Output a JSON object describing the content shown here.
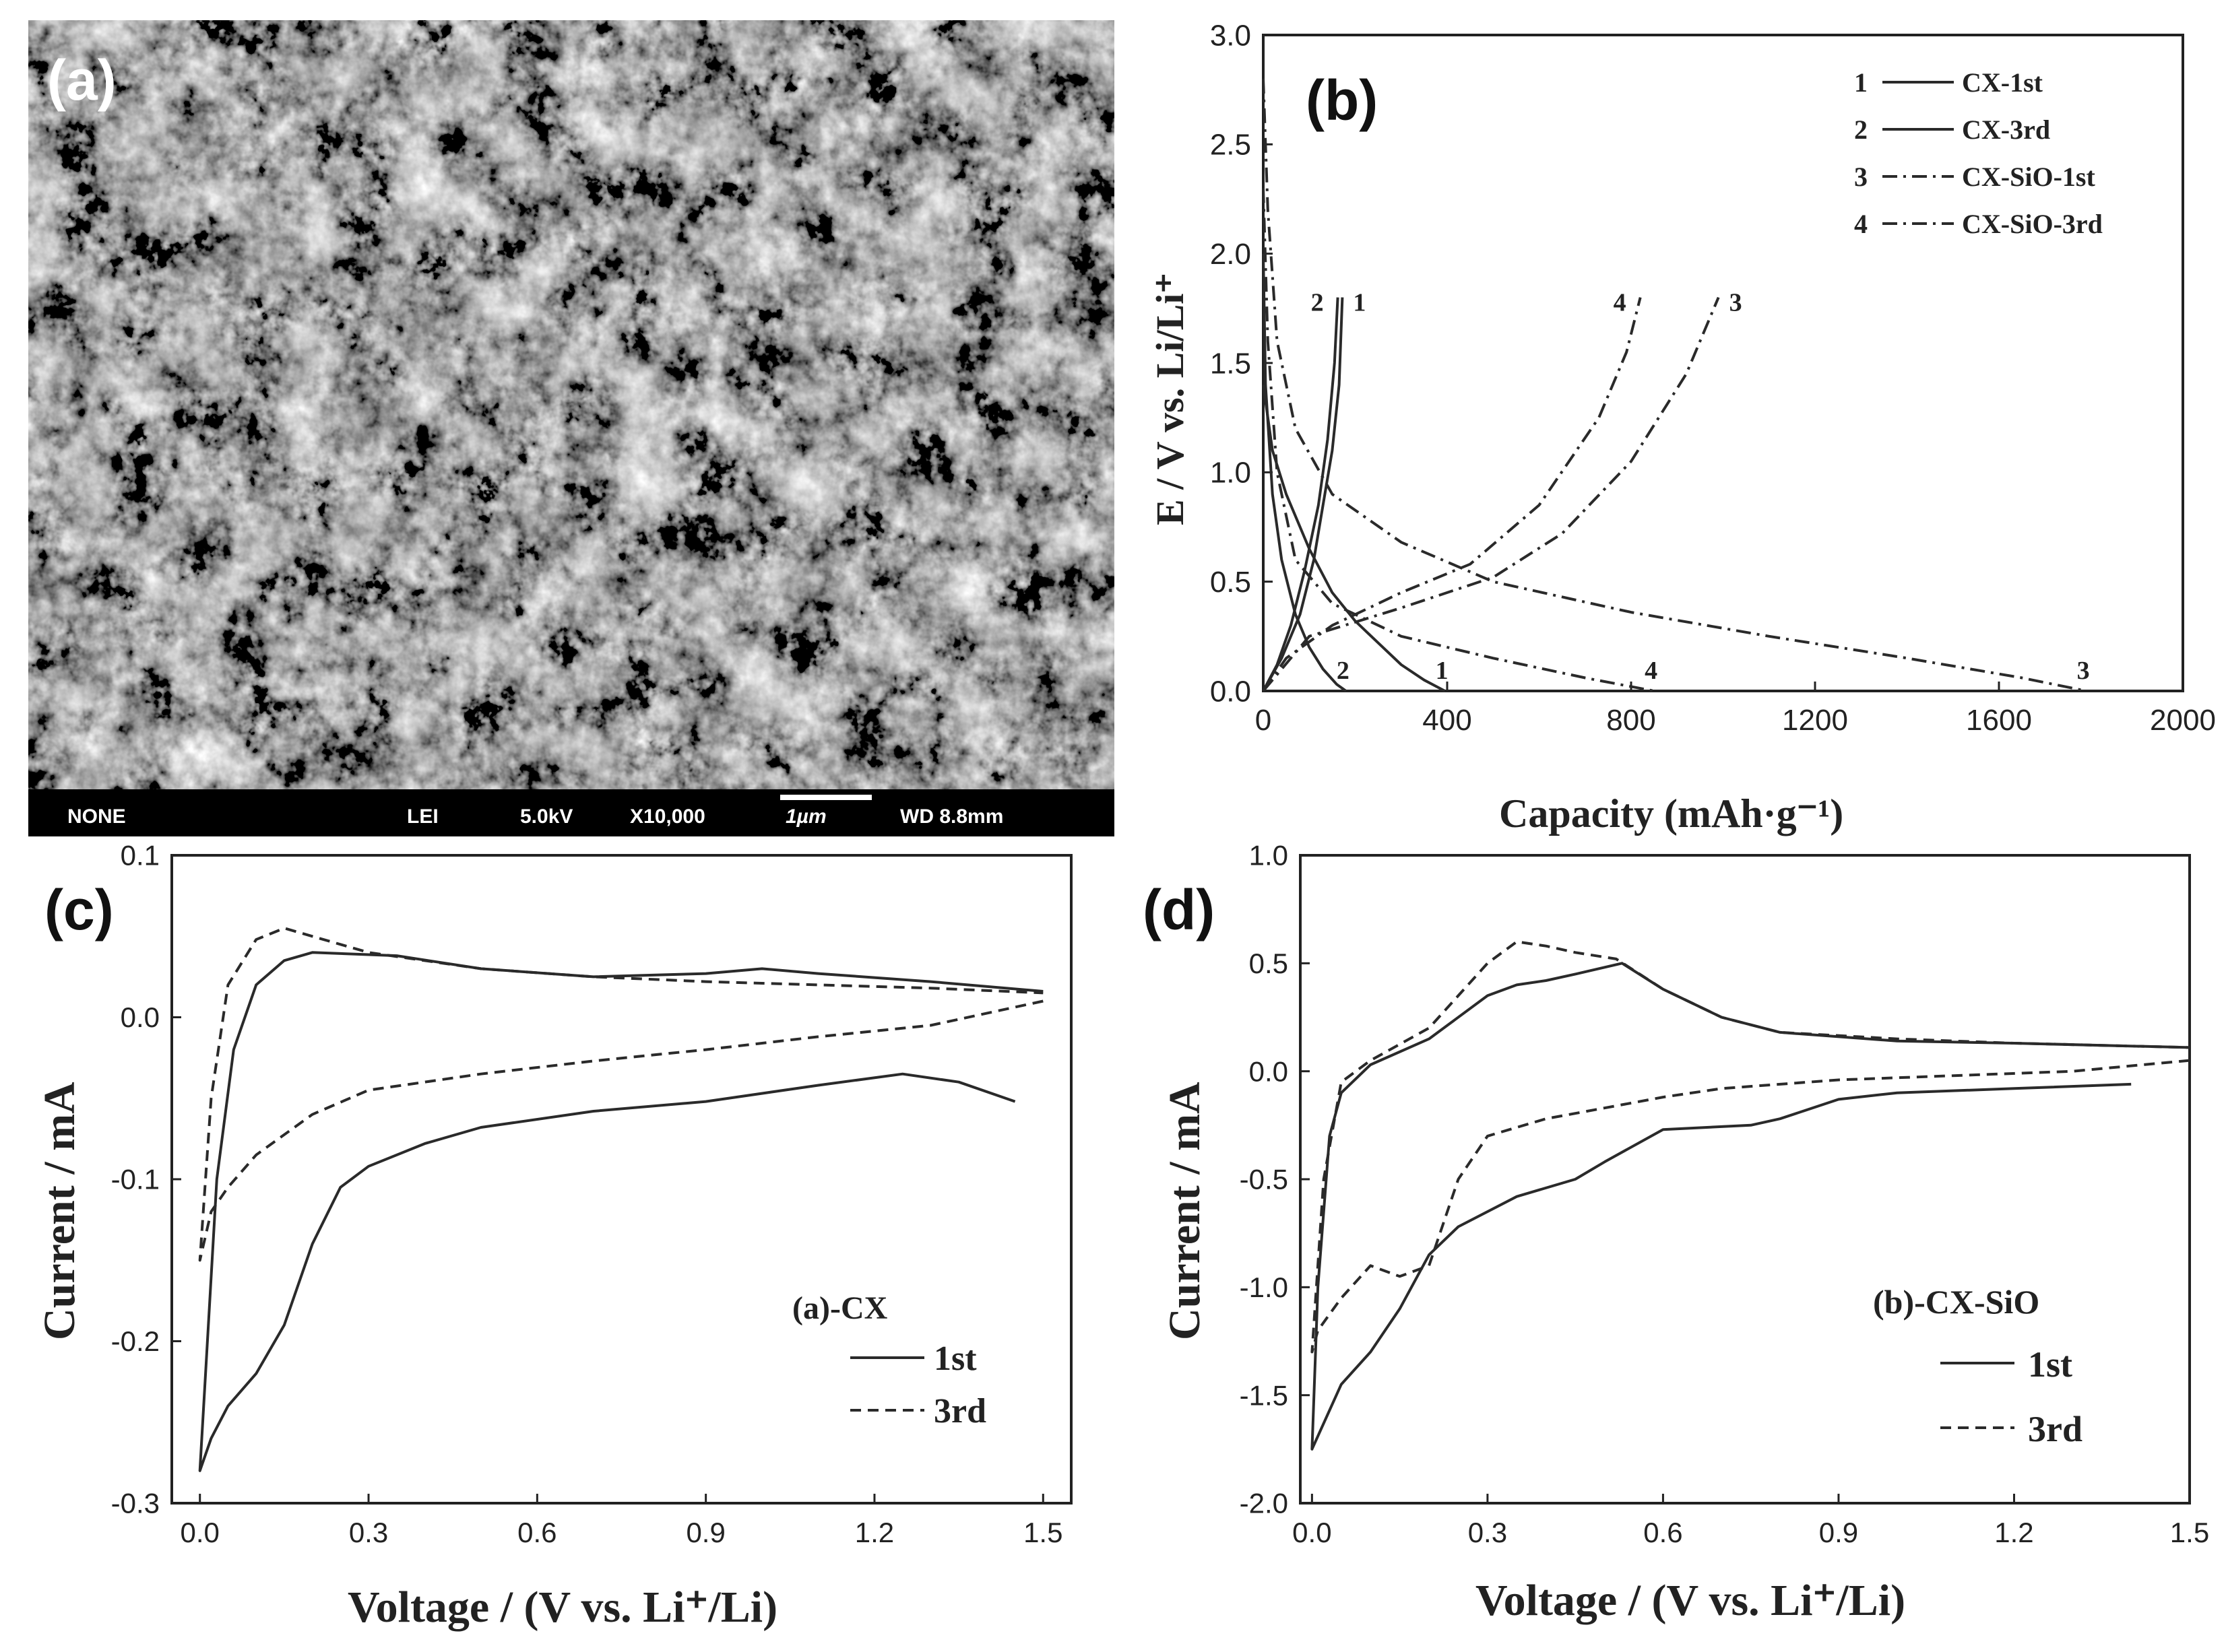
{
  "sem": {
    "label": "(a)",
    "footer": [
      "NONE",
      "LEI",
      "5.0kV",
      "X10,000",
      "1µm",
      "WD 8.8mm"
    ]
  },
  "panel_b": {
    "label": "(b)",
    "ylabel": "E / V vs. Li/Li⁺",
    "xlabel": "Capacity (mAh·g⁻¹)",
    "legend": [
      {
        "num": "1",
        "text": "CX-1st",
        "style": "solid"
      },
      {
        "num": "2",
        "text": "CX-3rd",
        "style": "solid"
      },
      {
        "num": "3",
        "text": "CX-SiO-1st",
        "style": "dashdot"
      },
      {
        "num": "4",
        "text": "CX-SiO-3rd",
        "style": "dashdot"
      }
    ]
  },
  "panel_c": {
    "label": "(c)",
    "ylabel": "Current / mA",
    "xlabel": "Voltage / (V vs. Li⁺/Li)",
    "legend_title": "(a)-CX",
    "legend": [
      {
        "text": "1st",
        "style": "solid"
      },
      {
        "text": "3rd",
        "style": "dashed"
      }
    ]
  },
  "panel_d": {
    "label": "(d)",
    "ylabel": "Current / mA",
    "xlabel": "Voltage / (V vs. Li⁺/Li)",
    "legend_title": "(b)-CX-SiO",
    "legend": [
      {
        "text": "1st",
        "style": "solid"
      },
      {
        "text": "3rd",
        "style": "dashed"
      }
    ]
  },
  "chart_data": [
    {
      "type": "line",
      "ylabel": "E / V vs. Li/Li⁺",
      "xlabel": "Capacity (mAh·g⁻¹)",
      "xlim": [
        0,
        2000
      ],
      "ylim": [
        0,
        3.0
      ],
      "xticks": [
        0,
        400,
        800,
        1200,
        1600,
        2000
      ],
      "yticks": [
        0.0,
        0.5,
        1.0,
        1.5,
        2.0,
        2.5,
        3.0
      ],
      "series": [
        {
          "name": "CX-1st",
          "id": "1",
          "style": "solid",
          "discharge": [
            [
              0,
              1.4
            ],
            [
              20,
              1.1
            ],
            [
              50,
              0.9
            ],
            [
              100,
              0.65
            ],
            [
              150,
              0.45
            ],
            [
              200,
              0.32
            ],
            [
              250,
              0.22
            ],
            [
              300,
              0.12
            ],
            [
              350,
              0.05
            ],
            [
              395,
              0.0
            ]
          ],
          "charge": [
            [
              0,
              0.0
            ],
            [
              40,
              0.15
            ],
            [
              80,
              0.35
            ],
            [
              110,
              0.6
            ],
            [
              130,
              0.85
            ],
            [
              150,
              1.1
            ],
            [
              165,
              1.4
            ],
            [
              172,
              1.8
            ]
          ]
        },
        {
          "name": "CX-3rd",
          "id": "2",
          "style": "solid",
          "discharge": [
            [
              0,
              2.0
            ],
            [
              5,
              1.4
            ],
            [
              20,
              0.9
            ],
            [
              40,
              0.6
            ],
            [
              70,
              0.35
            ],
            [
              100,
              0.2
            ],
            [
              130,
              0.1
            ],
            [
              160,
              0.03
            ],
            [
              180,
              0.0
            ]
          ],
          "charge": [
            [
              0,
              0.0
            ],
            [
              30,
              0.12
            ],
            [
              60,
              0.3
            ],
            [
              90,
              0.55
            ],
            [
              120,
              0.85
            ],
            [
              140,
              1.15
            ],
            [
              155,
              1.5
            ],
            [
              162,
              1.8
            ]
          ]
        },
        {
          "name": "CX-SiO-1st",
          "id": "3",
          "style": "dashdot",
          "discharge": [
            [
              0,
              2.8
            ],
            [
              10,
              2.2
            ],
            [
              30,
              1.6
            ],
            [
              70,
              1.2
            ],
            [
              150,
              0.9
            ],
            [
              300,
              0.68
            ],
            [
              500,
              0.5
            ],
            [
              800,
              0.36
            ],
            [
              1100,
              0.25
            ],
            [
              1400,
              0.15
            ],
            [
              1650,
              0.06
            ],
            [
              1790,
              0.0
            ]
          ],
          "charge": [
            [
              0,
              0.0
            ],
            [
              100,
              0.25
            ],
            [
              300,
              0.38
            ],
            [
              500,
              0.52
            ],
            [
              650,
              0.72
            ],
            [
              800,
              1.05
            ],
            [
              920,
              1.45
            ],
            [
              990,
              1.8
            ]
          ]
        },
        {
          "name": "CX-SiO-3rd",
          "id": "4",
          "style": "dashdot",
          "discharge": [
            [
              0,
              2.3
            ],
            [
              10,
              1.6
            ],
            [
              30,
              1.0
            ],
            [
              70,
              0.6
            ],
            [
              150,
              0.4
            ],
            [
              300,
              0.25
            ],
            [
              500,
              0.15
            ],
            [
              700,
              0.06
            ],
            [
              850,
              0.0
            ]
          ],
          "charge": [
            [
              0,
              0.0
            ],
            [
              50,
              0.15
            ],
            [
              150,
              0.3
            ],
            [
              300,
              0.45
            ],
            [
              450,
              0.58
            ],
            [
              600,
              0.85
            ],
            [
              730,
              1.25
            ],
            [
              790,
              1.55
            ],
            [
              820,
              1.8
            ]
          ]
        }
      ]
    },
    {
      "type": "line",
      "title": "(a)-CX",
      "xlabel": "Voltage / (V vs. Li⁺/Li)",
      "ylabel": "Current / mA",
      "xlim": [
        -0.05,
        1.55
      ],
      "ylim": [
        -0.3,
        0.1
      ],
      "xticks": [
        0.0,
        0.3,
        0.6,
        0.9,
        1.2,
        1.5
      ],
      "yticks": [
        -0.3,
        -0.2,
        -0.1,
        0.0,
        0.1
      ],
      "series": [
        {
          "name": "1st",
          "style": "solid",
          "points": [
            [
              1.45,
              -0.052
            ],
            [
              1.35,
              -0.04
            ],
            [
              1.25,
              -0.035
            ],
            [
              1.1,
              -0.042
            ],
            [
              0.9,
              -0.052
            ],
            [
              0.7,
              -0.058
            ],
            [
              0.5,
              -0.068
            ],
            [
              0.4,
              -0.078
            ],
            [
              0.3,
              -0.092
            ],
            [
              0.25,
              -0.105
            ],
            [
              0.2,
              -0.14
            ],
            [
              0.15,
              -0.19
            ],
            [
              0.1,
              -0.22
            ],
            [
              0.05,
              -0.24
            ],
            [
              0.02,
              -0.26
            ],
            [
              0.0,
              -0.28
            ],
            [
              0.01,
              -0.22
            ],
            [
              0.03,
              -0.1
            ],
            [
              0.06,
              -0.02
            ],
            [
              0.1,
              0.02
            ],
            [
              0.15,
              0.035
            ],
            [
              0.2,
              0.04
            ],
            [
              0.35,
              0.038
            ],
            [
              0.5,
              0.03
            ],
            [
              0.7,
              0.025
            ],
            [
              0.9,
              0.027
            ],
            [
              1.0,
              0.03
            ],
            [
              1.1,
              0.027
            ],
            [
              1.3,
              0.022
            ],
            [
              1.5,
              0.016
            ]
          ]
        },
        {
          "name": "3rd",
          "style": "dashed",
          "points": [
            [
              1.5,
              0.01
            ],
            [
              1.3,
              -0.005
            ],
            [
              1.1,
              -0.012
            ],
            [
              0.9,
              -0.02
            ],
            [
              0.7,
              -0.027
            ],
            [
              0.5,
              -0.035
            ],
            [
              0.3,
              -0.045
            ],
            [
              0.2,
              -0.06
            ],
            [
              0.1,
              -0.085
            ],
            [
              0.05,
              -0.105
            ],
            [
              0.02,
              -0.12
            ],
            [
              0.0,
              -0.15
            ],
            [
              0.02,
              -0.05
            ],
            [
              0.05,
              0.02
            ],
            [
              0.1,
              0.048
            ],
            [
              0.15,
              0.055
            ],
            [
              0.2,
              0.05
            ],
            [
              0.3,
              0.04
            ],
            [
              0.5,
              0.03
            ],
            [
              0.7,
              0.025
            ],
            [
              0.9,
              0.022
            ],
            [
              1.1,
              0.02
            ],
            [
              1.3,
              0.018
            ],
            [
              1.5,
              0.015
            ]
          ]
        }
      ]
    },
    {
      "type": "line",
      "title": "(b)-CX-SiO",
      "xlabel": "Voltage / (V vs. Li⁺/Li)",
      "ylabel": "Current / mA",
      "xlim": [
        -0.02,
        1.5
      ],
      "ylim": [
        -2.0,
        1.0
      ],
      "xticks": [
        0.0,
        0.3,
        0.6,
        0.9,
        1.2,
        1.5
      ],
      "yticks": [
        -2.0,
        -1.5,
        -1.0,
        -0.5,
        0.0,
        0.5,
        1.0
      ],
      "series": [
        {
          "name": "1st",
          "style": "solid",
          "points": [
            [
              1.4,
              -0.06
            ],
            [
              1.2,
              -0.08
            ],
            [
              1.0,
              -0.1
            ],
            [
              0.9,
              -0.13
            ],
            [
              0.8,
              -0.22
            ],
            [
              0.75,
              -0.25
            ],
            [
              0.6,
              -0.27
            ],
            [
              0.5,
              -0.42
            ],
            [
              0.45,
              -0.5
            ],
            [
              0.35,
              -0.58
            ],
            [
              0.25,
              -0.72
            ],
            [
              0.2,
              -0.85
            ],
            [
              0.15,
              -1.1
            ],
            [
              0.1,
              -1.3
            ],
            [
              0.05,
              -1.45
            ],
            [
              0.0,
              -1.75
            ],
            [
              0.01,
              -1.0
            ],
            [
              0.03,
              -0.3
            ],
            [
              0.05,
              -0.1
            ],
            [
              0.1,
              0.03
            ],
            [
              0.2,
              0.15
            ],
            [
              0.3,
              0.35
            ],
            [
              0.35,
              0.4
            ],
            [
              0.4,
              0.42
            ],
            [
              0.45,
              0.45
            ],
            [
              0.53,
              0.5
            ],
            [
              0.6,
              0.38
            ],
            [
              0.7,
              0.25
            ],
            [
              0.8,
              0.18
            ],
            [
              1.0,
              0.14
            ],
            [
              1.2,
              0.13
            ],
            [
              1.5,
              0.11
            ]
          ]
        },
        {
          "name": "3rd",
          "style": "dashed",
          "points": [
            [
              1.5,
              0.05
            ],
            [
              1.3,
              0.0
            ],
            [
              1.1,
              -0.02
            ],
            [
              0.9,
              -0.04
            ],
            [
              0.7,
              -0.08
            ],
            [
              0.6,
              -0.12
            ],
            [
              0.5,
              -0.17
            ],
            [
              0.4,
              -0.22
            ],
            [
              0.3,
              -0.3
            ],
            [
              0.25,
              -0.5
            ],
            [
              0.2,
              -0.9
            ],
            [
              0.15,
              -0.95
            ],
            [
              0.1,
              -0.9
            ],
            [
              0.05,
              -1.05
            ],
            [
              0.01,
              -1.2
            ],
            [
              0.0,
              -1.3
            ],
            [
              0.02,
              -0.5
            ],
            [
              0.05,
              -0.05
            ],
            [
              0.1,
              0.05
            ],
            [
              0.2,
              0.2
            ],
            [
              0.3,
              0.5
            ],
            [
              0.35,
              0.6
            ],
            [
              0.4,
              0.58
            ],
            [
              0.45,
              0.55
            ],
            [
              0.52,
              0.52
            ],
            [
              0.6,
              0.38
            ],
            [
              0.7,
              0.25
            ],
            [
              0.8,
              0.18
            ],
            [
              1.0,
              0.15
            ],
            [
              1.2,
              0.13
            ],
            [
              1.5,
              0.11
            ]
          ]
        }
      ]
    }
  ]
}
